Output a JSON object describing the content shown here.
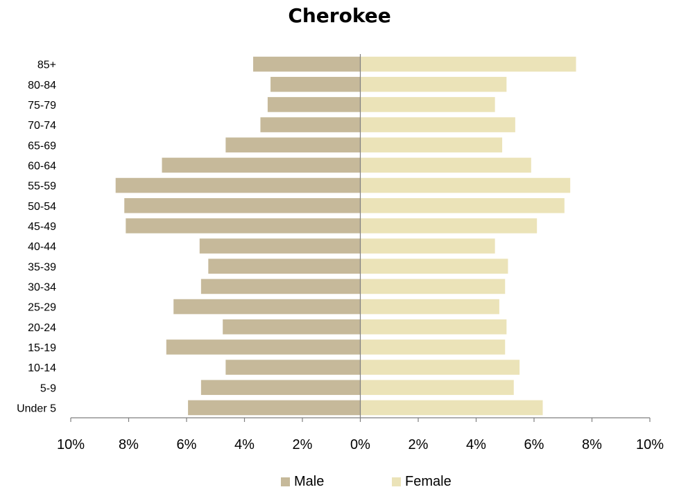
{
  "chart_data": {
    "type": "bar",
    "orientation": "horizontal",
    "title": "Cherokee",
    "categories": [
      "85+",
      "80-84",
      "75-79",
      "70-74",
      "65-69",
      "60-64",
      "55-59",
      "50-54",
      "45-49",
      "40-44",
      "35-39",
      "30-34",
      "25-29",
      "20-24",
      "15-19",
      "10-14",
      "5-9",
      "Under 5"
    ],
    "series": [
      {
        "name": "Male",
        "color": "#c6b99a",
        "values": [
          3.7,
          3.1,
          3.2,
          3.45,
          4.65,
          6.85,
          8.45,
          8.15,
          8.1,
          5.55,
          5.25,
          5.5,
          6.45,
          4.75,
          6.7,
          4.65,
          5.5,
          5.95
        ]
      },
      {
        "name": "Female",
        "color": "#ebe3b8",
        "values": [
          7.45,
          5.05,
          4.65,
          5.35,
          4.9,
          5.9,
          7.25,
          7.05,
          6.1,
          4.65,
          5.1,
          5.0,
          4.8,
          5.05,
          5.0,
          5.5,
          5.3,
          6.3
        ]
      }
    ],
    "x_ticks": [
      "10%",
      "8%",
      "6%",
      "4%",
      "2%",
      "0%",
      "2%",
      "4%",
      "6%",
      "8%",
      "10%"
    ],
    "xlim": [
      -10,
      10
    ],
    "grid": false,
    "legend_position": "bottom"
  }
}
